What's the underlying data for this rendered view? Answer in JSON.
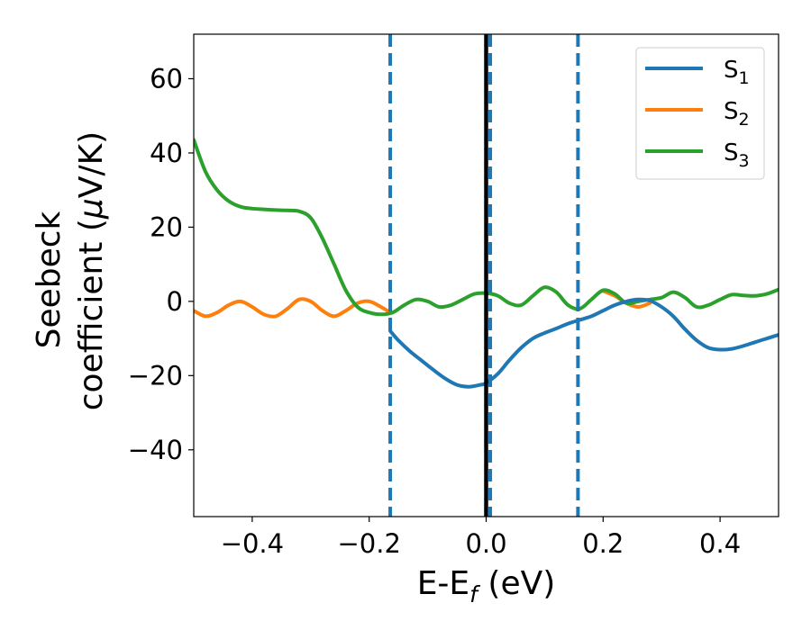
{
  "chart_data": {
    "type": "line",
    "xlabel": {
      "main": "E-E",
      "sub": "f",
      "rest": " (eV)"
    },
    "ylabel": {
      "line1": "Seebeck",
      "line2": "coefficient  (",
      "mu": "μ",
      "unit": "V/K)"
    },
    "xlim": [
      -0.5,
      0.5
    ],
    "ylim": [
      -58,
      72
    ],
    "xticks": [
      -0.4,
      -0.2,
      0.0,
      0.2,
      0.4
    ],
    "xtick_labels": [
      "−0.4",
      "−0.2",
      "0.0",
      "0.2",
      "0.4"
    ],
    "yticks": [
      -40,
      -20,
      0,
      20,
      40,
      60
    ],
    "ytick_labels": [
      "−40",
      "−20",
      "0",
      "20",
      "40",
      "60"
    ],
    "grid": false,
    "legend_position": "top-right",
    "series": [
      {
        "name": "S",
        "name_sub": "1",
        "color": "#1f77b4",
        "x": [
          -0.164,
          -0.15,
          -0.13,
          -0.11,
          -0.09,
          -0.07,
          -0.05,
          -0.03,
          -0.01,
          0.0,
          0.02,
          0.04,
          0.06,
          0.08,
          0.1,
          0.12,
          0.14,
          0.16,
          0.18,
          0.2,
          0.22,
          0.24,
          0.26,
          0.28,
          0.3,
          0.32,
          0.34,
          0.36,
          0.38,
          0.4,
          0.42,
          0.44,
          0.46,
          0.48,
          0.5
        ],
        "y": [
          -8,
          -10.5,
          -13.5,
          -16,
          -18.5,
          -20.8,
          -22.5,
          -23,
          -22.5,
          -22,
          -19.5,
          -15.8,
          -12.5,
          -10,
          -8.5,
          -7.3,
          -6,
          -5,
          -4,
          -2.5,
          -1,
          0,
          0.5,
          0.2,
          -1.5,
          -4,
          -7.5,
          -10.5,
          -12.5,
          -13,
          -12.8,
          -12,
          -11,
          -10,
          -9
        ]
      },
      {
        "name": "S",
        "name_sub": "2",
        "color": "#ff7f0e",
        "x": [
          -0.5,
          -0.48,
          -0.46,
          -0.44,
          -0.42,
          -0.4,
          -0.38,
          -0.36,
          -0.34,
          -0.32,
          -0.3,
          -0.28,
          -0.26,
          -0.24,
          -0.22,
          -0.2,
          -0.18,
          -0.164,
          0.2,
          0.22,
          0.24,
          0.26,
          0.28
        ],
        "y": [
          -2.5,
          -4,
          -3,
          -1,
          0,
          -1.5,
          -3.5,
          -4,
          -2,
          0.5,
          0,
          -2.5,
          -4,
          -2.5,
          -0.5,
          0,
          -1.5,
          -3,
          2.8,
          1.5,
          -0.5,
          -1.5,
          -0.5
        ]
      },
      {
        "name": "S",
        "name_sub": "3",
        "color": "#2ca02c",
        "x": [
          -0.5,
          -0.48,
          -0.46,
          -0.44,
          -0.42,
          -0.4,
          -0.38,
          -0.36,
          -0.34,
          -0.32,
          -0.3,
          -0.28,
          -0.26,
          -0.24,
          -0.22,
          -0.2,
          -0.18,
          -0.16,
          -0.14,
          -0.12,
          -0.1,
          -0.08,
          -0.06,
          -0.04,
          -0.02,
          0.0,
          0.02,
          0.04,
          0.06,
          0.08,
          0.1,
          0.12,
          0.14,
          0.16,
          0.18,
          0.2,
          0.22,
          0.24,
          0.26,
          0.28,
          0.3,
          0.32,
          0.34,
          0.36,
          0.38,
          0.4,
          0.42,
          0.44,
          0.46,
          0.48,
          0.5
        ],
        "y": [
          43.5,
          35,
          30,
          27,
          25.5,
          25,
          24.8,
          24.6,
          24.5,
          24.3,
          22.5,
          17,
          10,
          3,
          -1.5,
          -3,
          -3.5,
          -3,
          -1,
          0.5,
          0,
          -1.5,
          -1,
          0.5,
          2,
          2.2,
          1.5,
          -0.5,
          -1,
          1.5,
          3.8,
          2.5,
          -1,
          -2,
          0.5,
          3,
          2,
          -0.5,
          0,
          0.5,
          1,
          2.5,
          1,
          -1.5,
          -1,
          0.5,
          1.8,
          1.6,
          1.5,
          2,
          3.2
        ]
      }
    ],
    "vertical_lines": [
      {
        "x": 0.0,
        "style": "solid",
        "color": "#000000"
      },
      {
        "x": -0.164,
        "style": "dashed",
        "color": "#1f77b4"
      },
      {
        "x": 0.007,
        "style": "dashed",
        "color": "#1f77b4"
      },
      {
        "x": 0.157,
        "style": "dashed",
        "color": "#1f77b4"
      }
    ]
  }
}
